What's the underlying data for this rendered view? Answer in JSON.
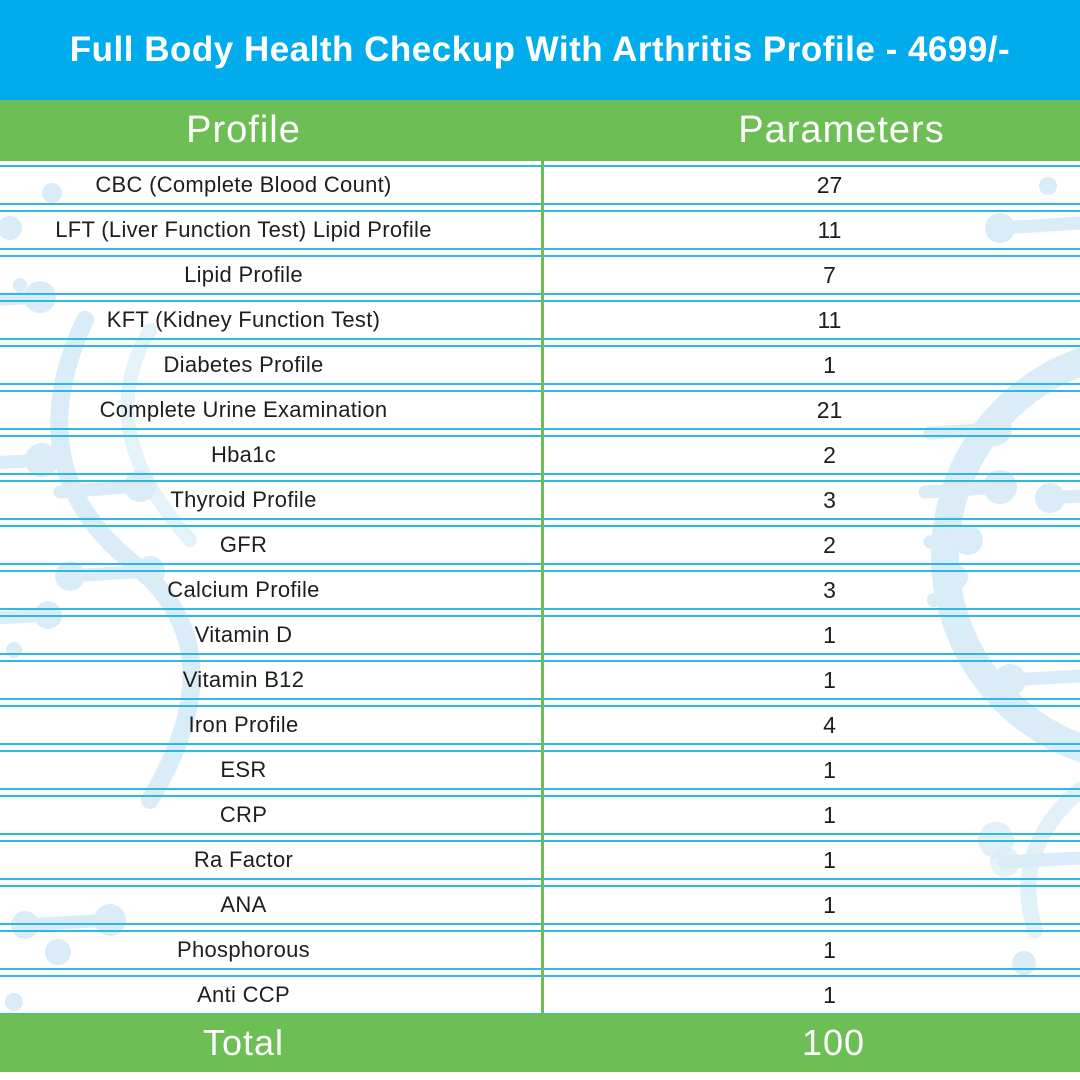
{
  "title": "Full Body Health Checkup With Arthritis Profile - 4699/-",
  "table": {
    "col1_header": "Profile",
    "col2_header": "Parameters",
    "rows": [
      {
        "profile": "CBC (Complete Blood Count)",
        "parameters": "27"
      },
      {
        "profile": "LFT (Liver Function Test) Lipid Profile",
        "parameters": "11"
      },
      {
        "profile": "Lipid Profile",
        "parameters": "7"
      },
      {
        "profile": "KFT (Kidney Function Test)",
        "parameters": "11"
      },
      {
        "profile": "Diabetes Profile",
        "parameters": "1"
      },
      {
        "profile": "Complete Urine Examination",
        "parameters": "21"
      },
      {
        "profile": "Hba1c",
        "parameters": "2"
      },
      {
        "profile": "Thyroid Profile",
        "parameters": "3"
      },
      {
        "profile": "GFR",
        "parameters": "2"
      },
      {
        "profile": "Calcium Profile",
        "parameters": "3"
      },
      {
        "profile": "Vitamin D",
        "parameters": "1"
      },
      {
        "profile": "Vitamin B12",
        "parameters": "1"
      },
      {
        "profile": "Iron Profile",
        "parameters": "4"
      },
      {
        "profile": "ESR",
        "parameters": "1"
      },
      {
        "profile": "CRP",
        "parameters": "1"
      },
      {
        "profile": "Ra Factor",
        "parameters": "1"
      },
      {
        "profile": "ANA",
        "parameters": "1"
      },
      {
        "profile": "Phosphorous",
        "parameters": "1"
      },
      {
        "profile": "Anti CCP",
        "parameters": "1"
      }
    ],
    "total_label": "Total",
    "total_value": "100"
  },
  "colors": {
    "blue": "#00ACEC",
    "green": "#6CBE55",
    "line": "#2FB7E5",
    "text": "#1E1E1E",
    "decor": "#D9ECF7"
  }
}
